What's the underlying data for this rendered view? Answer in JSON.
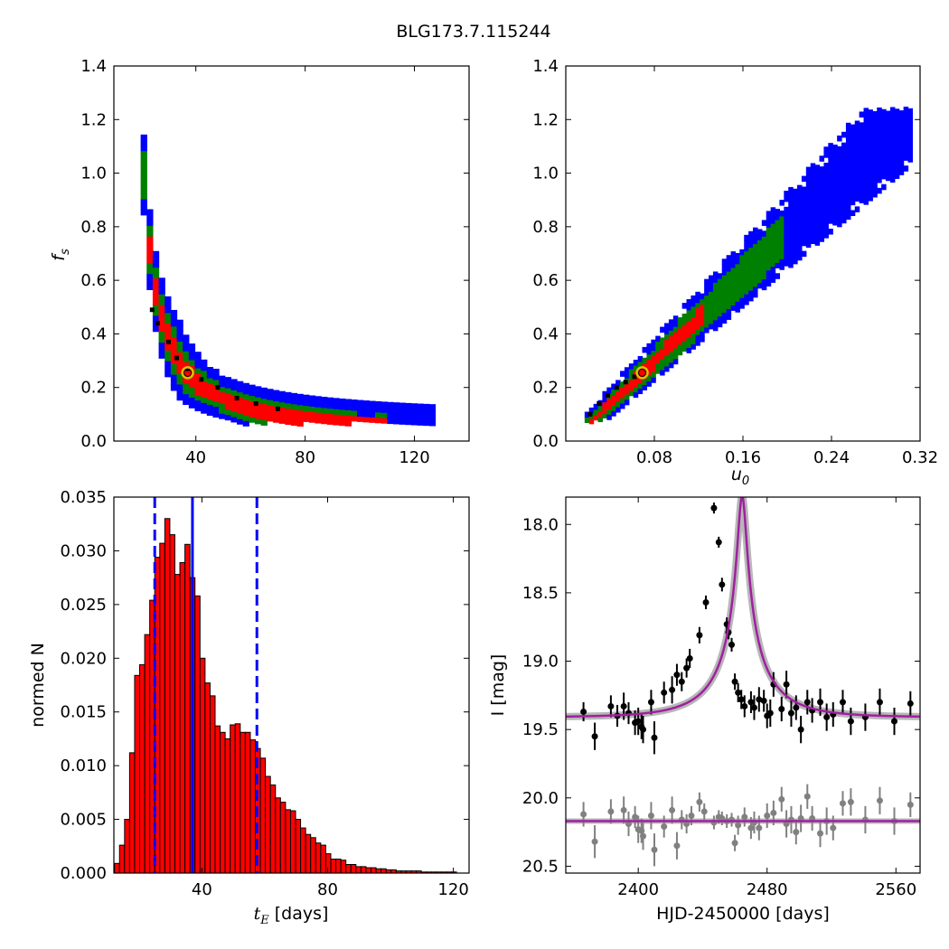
{
  "figure": {
    "title": "BLG173.7.115244"
  },
  "chart_data": [
    {
      "id": "fs_vs_tE",
      "type": "heatmap",
      "xlabel": "",
      "ylabel": "f_s",
      "xlim": [
        10,
        140
      ],
      "ylim": [
        0.0,
        1.4
      ],
      "xticks": [
        40,
        80,
        120
      ],
      "yticks": [
        0.0,
        0.2,
        0.4,
        0.6,
        0.8,
        1.0,
        1.2,
        1.4
      ],
      "levels": [
        {
          "name": "outer",
          "color": "#0000ff"
        },
        {
          "name": "middle",
          "color": "#008000"
        },
        {
          "name": "inner",
          "color": "#ff0000"
        },
        {
          "name": "core",
          "color": "#000000"
        }
      ],
      "marker": {
        "x": 37,
        "y": 0.255
      },
      "ridge": [
        [
          24,
          0.49
        ],
        [
          26,
          0.44
        ],
        [
          30,
          0.37
        ],
        [
          33,
          0.31
        ],
        [
          37,
          0.27
        ],
        [
          42,
          0.23
        ],
        [
          48,
          0.2
        ],
        [
          55,
          0.16
        ],
        [
          62,
          0.14
        ],
        [
          70,
          0.12
        ]
      ]
    },
    {
      "id": "fs_vs_u0",
      "type": "heatmap",
      "xlabel": "u_0",
      "ylabel": "",
      "xlim": [
        0.0,
        0.32
      ],
      "ylim": [
        0.0,
        1.4
      ],
      "xticks": [
        0.08,
        0.16,
        0.24,
        0.32
      ],
      "yticks": [
        0.0,
        0.2,
        0.4,
        0.6,
        0.8,
        1.0,
        1.2,
        1.4
      ],
      "levels": [
        {
          "name": "outer",
          "color": "#0000ff"
        },
        {
          "name": "middle",
          "color": "#008000"
        },
        {
          "name": "inner",
          "color": "#ff0000"
        },
        {
          "name": "core",
          "color": "#000000"
        }
      ],
      "marker": {
        "x": 0.069,
        "y": 0.255
      }
    },
    {
      "id": "tE_histogram",
      "type": "bar",
      "xlabel": "t_E [days]",
      "ylabel": "normed N",
      "xlim": [
        12,
        125
      ],
      "ylim": [
        0.0,
        0.035
      ],
      "xticks": [
        40,
        80,
        120
      ],
      "yticks": [
        0.0,
        0.005,
        0.01,
        0.015,
        0.02,
        0.025,
        0.03,
        0.035
      ],
      "bar_color": "#ff0000",
      "bar_width": 1.6,
      "values": [
        [
          13,
          0.0009
        ],
        [
          14.6,
          0.0026
        ],
        [
          16.2,
          0.005
        ],
        [
          17.8,
          0.0112
        ],
        [
          19.4,
          0.0184
        ],
        [
          21,
          0.0194
        ],
        [
          22.6,
          0.0222
        ],
        [
          24.2,
          0.0254
        ],
        [
          25.8,
          0.0294
        ],
        [
          27.4,
          0.0307
        ],
        [
          29,
          0.033
        ],
        [
          30.6,
          0.0315
        ],
        [
          32.2,
          0.0278
        ],
        [
          33.8,
          0.0289
        ],
        [
          35.4,
          0.0306
        ],
        [
          37,
          0.0275
        ],
        [
          38.6,
          0.0258
        ],
        [
          40.2,
          0.02
        ],
        [
          41.8,
          0.0177
        ],
        [
          43.4,
          0.0165
        ],
        [
          45,
          0.0137
        ],
        [
          46.6,
          0.0131
        ],
        [
          48.2,
          0.0125
        ],
        [
          49.8,
          0.0138
        ],
        [
          51.4,
          0.0139
        ],
        [
          53,
          0.0131
        ],
        [
          54.6,
          0.0131
        ],
        [
          56.2,
          0.0124
        ],
        [
          57.8,
          0.0116
        ],
        [
          59.4,
          0.0107
        ],
        [
          61,
          0.009
        ],
        [
          62.6,
          0.0082
        ],
        [
          64.2,
          0.007
        ],
        [
          65.8,
          0.0066
        ],
        [
          67.4,
          0.0059
        ],
        [
          69,
          0.0058
        ],
        [
          70.6,
          0.005
        ],
        [
          72.2,
          0.0042
        ],
        [
          73.8,
          0.0036
        ],
        [
          75.4,
          0.0033
        ],
        [
          77,
          0.0028
        ],
        [
          78.6,
          0.0026
        ],
        [
          80.2,
          0.0018
        ],
        [
          81.8,
          0.0013
        ],
        [
          83.4,
          0.0013
        ],
        [
          85,
          0.0012
        ],
        [
          86.6,
          0.0008
        ],
        [
          88.2,
          0.0008
        ],
        [
          89.8,
          0.0006
        ],
        [
          91.4,
          0.0006
        ],
        [
          93,
          0.0005
        ],
        [
          94.6,
          0.0005
        ],
        [
          96.2,
          0.0004
        ],
        [
          97.8,
          0.0004
        ],
        [
          99.4,
          0.0003
        ],
        [
          101,
          0.0003
        ],
        [
          102.6,
          0.0002
        ],
        [
          104.2,
          0.0002
        ],
        [
          105.8,
          0.0002
        ],
        [
          107.4,
          0.0002
        ],
        [
          109,
          0.0002
        ],
        [
          110.6,
          0.0001
        ],
        [
          112.2,
          0.0001
        ],
        [
          113.8,
          0.0001
        ],
        [
          115.4,
          0.0001
        ],
        [
          117,
          0.0001
        ],
        [
          118.6,
          0.0001
        ],
        [
          120.2,
          0.0001
        ]
      ],
      "vlines": [
        {
          "x": 37,
          "style": "solid",
          "color": "#0000ff"
        },
        {
          "x": 25,
          "style": "dashed",
          "color": "#0000ff"
        },
        {
          "x": 57.5,
          "style": "dashed",
          "color": "#0000ff"
        }
      ]
    },
    {
      "id": "lightcurve",
      "type": "scatter",
      "xlabel": "HJD-2450000 [days]",
      "ylabel": "I [mag]",
      "xlim": [
        2355,
        2575
      ],
      "ylim": [
        20.55,
        17.8
      ],
      "xticks": [
        2400,
        2480,
        2560
      ],
      "yticks": [
        18.0,
        18.5,
        19.0,
        19.5,
        20.0,
        20.5
      ],
      "ytick_labels": [
        "18.0",
        "18.5",
        "19.0",
        "19.5",
        "20.0",
        "20.5"
      ],
      "model": {
        "t0": 2464.5,
        "tE": 37,
        "u0": 0.069,
        "fs": 0.255,
        "baseline": 19.41,
        "color": "#a020a0"
      },
      "residual_baseline": 20.17,
      "series": [
        {
          "color": "#000000",
          "points": [
            [
              2366,
              19.37,
              0.07
            ],
            [
              2373,
              19.55,
              0.1
            ],
            [
              2383,
              19.33,
              0.08
            ],
            [
              2387,
              19.4,
              0.08
            ],
            [
              2391,
              19.33,
              0.1
            ],
            [
              2394,
              19.38,
              0.08
            ],
            [
              2398,
              19.45,
              0.09
            ],
            [
              2400,
              19.44,
              0.1
            ],
            [
              2402,
              19.48,
              0.09
            ],
            [
              2403,
              19.5,
              0.1
            ],
            [
              2408,
              19.3,
              0.09
            ],
            [
              2410,
              19.56,
              0.12
            ],
            [
              2416,
              19.23,
              0.08
            ],
            [
              2421,
              19.21,
              0.1
            ],
            [
              2424,
              19.1,
              0.08
            ],
            [
              2427,
              19.15,
              0.07
            ],
            [
              2430,
              19.05,
              0.07
            ],
            [
              2432,
              18.98,
              0.07
            ],
            [
              2438,
              18.81,
              0.06
            ],
            [
              2442,
              18.57,
              0.05
            ],
            [
              2447,
              17.88,
              0.04
            ],
            [
              2450,
              18.13,
              0.04
            ],
            [
              2452,
              18.44,
              0.05
            ],
            [
              2455,
              18.73,
              0.05
            ],
            [
              2456,
              18.79,
              0.05
            ],
            [
              2458,
              18.88,
              0.05
            ],
            [
              2460,
              19.15,
              0.06
            ],
            [
              2462,
              19.23,
              0.07
            ],
            [
              2464,
              19.28,
              0.07
            ],
            [
              2466,
              19.33,
              0.08
            ],
            [
              2470,
              19.3,
              0.08
            ],
            [
              2472,
              19.34,
              0.09
            ],
            [
              2475,
              19.28,
              0.09
            ],
            [
              2478,
              19.29,
              0.08
            ],
            [
              2480,
              19.4,
              0.09
            ],
            [
              2482,
              19.38,
              0.1
            ],
            [
              2484,
              19.17,
              0.09
            ],
            [
              2489,
              19.35,
              0.09
            ],
            [
              2492,
              19.17,
              0.1
            ],
            [
              2495,
              19.38,
              0.1
            ],
            [
              2498,
              19.34,
              0.09
            ],
            [
              2501,
              19.5,
              0.1
            ],
            [
              2505,
              19.3,
              0.09
            ],
            [
              2508,
              19.36,
              0.09
            ],
            [
              2513,
              19.3,
              0.1
            ],
            [
              2517,
              19.41,
              0.1
            ],
            [
              2521,
              19.39,
              0.09
            ],
            [
              2527,
              19.3,
              0.09
            ],
            [
              2532,
              19.44,
              0.1
            ],
            [
              2541,
              19.41,
              0.1
            ],
            [
              2550,
              19.3,
              0.1
            ],
            [
              2559,
              19.44,
              0.1
            ],
            [
              2569,
              19.31,
              0.09
            ]
          ]
        },
        {
          "color": "#808080",
          "points": [
            [
              2366,
              20.12,
              0.09
            ],
            [
              2373,
              20.32,
              0.12
            ],
            [
              2383,
              20.1,
              0.09
            ],
            [
              2391,
              20.09,
              0.1
            ],
            [
              2394,
              20.19,
              0.09
            ],
            [
              2398,
              20.14,
              0.08
            ],
            [
              2400,
              20.23,
              0.1
            ],
            [
              2402,
              20.24,
              0.09
            ],
            [
              2403,
              20.28,
              0.1
            ],
            [
              2408,
              20.13,
              0.1
            ],
            [
              2410,
              20.38,
              0.12
            ],
            [
              2416,
              20.21,
              0.08
            ],
            [
              2421,
              20.09,
              0.1
            ],
            [
              2424,
              20.35,
              0.1
            ],
            [
              2427,
              20.16,
              0.07
            ],
            [
              2430,
              20.19,
              0.07
            ],
            [
              2433,
              20.13,
              0.07
            ],
            [
              2438,
              20.03,
              0.07
            ],
            [
              2441,
              20.1,
              0.06
            ],
            [
              2447,
              20.18,
              0.05
            ],
            [
              2450,
              20.14,
              0.05
            ],
            [
              2452,
              20.15,
              0.05
            ],
            [
              2455,
              20.17,
              0.05
            ],
            [
              2458,
              20.16,
              0.05
            ],
            [
              2460,
              20.33,
              0.06
            ],
            [
              2462,
              20.2,
              0.07
            ],
            [
              2466,
              20.14,
              0.07
            ],
            [
              2470,
              20.22,
              0.08
            ],
            [
              2472,
              20.18,
              0.08
            ],
            [
              2475,
              20.22,
              0.09
            ],
            [
              2480,
              20.13,
              0.09
            ],
            [
              2484,
              20.11,
              0.09
            ],
            [
              2489,
              20.01,
              0.09
            ],
            [
              2492,
              20.19,
              0.1
            ],
            [
              2495,
              20.16,
              0.1
            ],
            [
              2498,
              20.25,
              0.09
            ],
            [
              2501,
              20.15,
              0.1
            ],
            [
              2505,
              19.99,
              0.09
            ],
            [
              2508,
              20.15,
              0.09
            ],
            [
              2513,
              20.26,
              0.1
            ],
            [
              2517,
              20.17,
              0.1
            ],
            [
              2521,
              20.22,
              0.09
            ],
            [
              2527,
              20.04,
              0.09
            ],
            [
              2532,
              20.03,
              0.1
            ],
            [
              2541,
              20.16,
              0.1
            ],
            [
              2550,
              20.02,
              0.1
            ],
            [
              2559,
              20.17,
              0.1
            ],
            [
              2569,
              20.05,
              0.09
            ]
          ]
        }
      ]
    }
  ]
}
